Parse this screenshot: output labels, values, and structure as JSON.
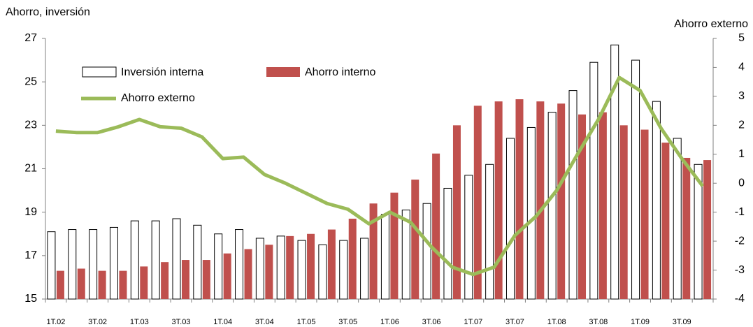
{
  "chart_data": {
    "type": "bar",
    "ylabel": "Ahorro, inversión",
    "y2label": "Ahorro externo",
    "categories": [
      "1T.02",
      null,
      "3T.02",
      null,
      "1T.03",
      null,
      "3T.03",
      null,
      "1T.04",
      null,
      "3T.04",
      null,
      "1T.05",
      null,
      "3T.05",
      null,
      "1T.06",
      null,
      "3T.06",
      null,
      "1T.07",
      null,
      "3T.07",
      null,
      "1T.08",
      null,
      "3T.08",
      null,
      "1T.09",
      null,
      "3T.09",
      null
    ],
    "series": [
      {
        "name": "Inversión interna",
        "type": "bar",
        "color": "#ffffff",
        "edgecolor": "#000000",
        "values": [
          18.1,
          18.2,
          18.2,
          18.3,
          18.6,
          18.6,
          18.7,
          18.4,
          18.0,
          18.2,
          17.8,
          17.9,
          17.7,
          17.5,
          17.7,
          17.8,
          18.9,
          19.1,
          19.4,
          20.1,
          20.7,
          21.2,
          22.4,
          22.9,
          23.6,
          24.6,
          25.9,
          26.7,
          26.0,
          24.1,
          22.4,
          21.2
        ]
      },
      {
        "name": "Ahorro interno",
        "type": "bar",
        "color": "#c0504d",
        "values": [
          16.3,
          16.4,
          16.3,
          16.3,
          16.5,
          16.7,
          16.8,
          16.8,
          17.1,
          17.3,
          17.5,
          17.9,
          18.0,
          18.2,
          18.7,
          19.4,
          19.9,
          20.5,
          21.7,
          23.0,
          23.9,
          24.1,
          24.2,
          24.1,
          24.0,
          23.5,
          23.6,
          23.0,
          22.8,
          22.2,
          21.5,
          21.4
        ]
      },
      {
        "name": "Ahorro externo",
        "type": "line",
        "axis": "y2",
        "color": "#9bbb59",
        "values": [
          1.8,
          1.75,
          1.75,
          1.95,
          2.2,
          1.95,
          1.9,
          1.6,
          0.85,
          0.9,
          0.3,
          0.0,
          -0.35,
          -0.7,
          -0.9,
          -1.4,
          -1.0,
          -1.35,
          -2.2,
          -2.9,
          -3.15,
          -2.9,
          -1.8,
          -1.15,
          -0.25,
          1.0,
          2.2,
          3.65,
          3.2,
          1.9,
          0.85,
          -0.1
        ]
      }
    ],
    "ylim": [
      15,
      27
    ],
    "yticks": [
      15,
      17,
      19,
      21,
      23,
      25,
      27
    ],
    "y2lim": [
      -4,
      5
    ],
    "y2ticks": [
      -4,
      -3,
      -2,
      -1,
      0,
      1,
      2,
      3,
      4,
      5
    ]
  }
}
